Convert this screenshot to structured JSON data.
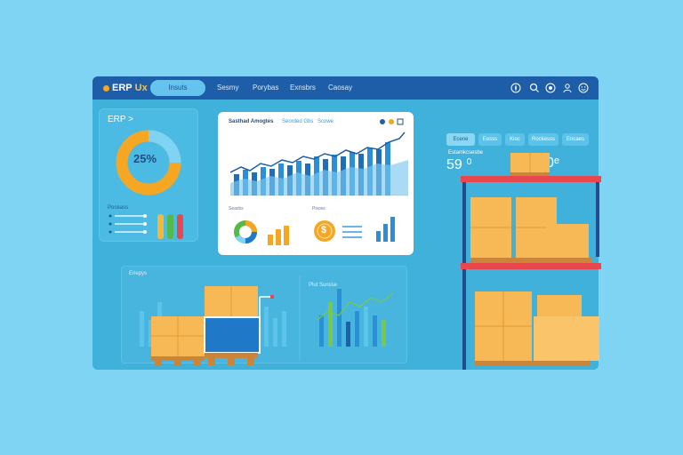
{
  "app": {
    "logo": "ERP",
    "logo_suffix": "Ux"
  },
  "nav": {
    "active": "Insuts",
    "items": [
      "Sesmy",
      "Porybas",
      "Exnsbrs",
      "Caosay"
    ]
  },
  "topbar_icons": [
    "compass-icon",
    "search-icon",
    "settings-icon",
    "user-icon"
  ],
  "left_card": {
    "title": "ERP >",
    "donut": {
      "value": 25,
      "label": "25%"
    },
    "list_title": "Poceass"
  },
  "center_card": {
    "title": "Sasthad Amogtes",
    "legend": [
      "Seorded Gbs",
      "Scowe"
    ],
    "sub_left": "Seavbs",
    "sub_right": "Pisoss",
    "coin_label": "$"
  },
  "bottom_panel": {
    "left_label": "Eriepys",
    "right_label": "Plut Sunsse"
  },
  "warehouse": {
    "tabs": [
      "Ecene",
      "Eesss",
      "Kioc",
      "Rockesss",
      "Encaes"
    ],
    "stat_sub": "Estamkcsesbe",
    "stat_left": "59 ⁰",
    "stat_right": "139.80ᵉ"
  },
  "colors": {
    "background": "#7fd3f3",
    "topbar": "#1e5ea8",
    "panel": "#3fb1db",
    "accent_orange": "#f5a623",
    "accent_blue": "#1f78c8",
    "rack_red": "#e8474e",
    "box": "#f7b955"
  }
}
